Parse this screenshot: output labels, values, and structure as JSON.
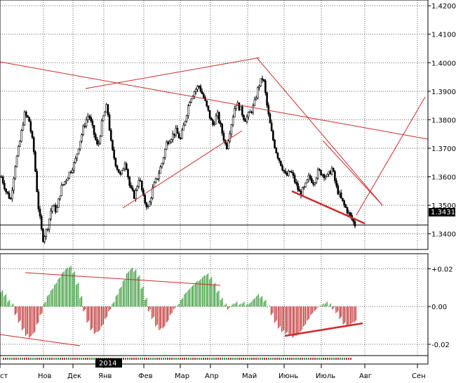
{
  "colors": {
    "background": "#ffffff",
    "grid": "#000000",
    "bull_candle": "#ffffff",
    "bear_candle": "#000000",
    "trendline": "#cc2b2b",
    "histogram_up": "#3a9a3a",
    "histogram_down": "#c03030"
  },
  "price_panel": {
    "current_price_label": "1.3431",
    "yticks": [
      "1.3400",
      "1.3500",
      "1.3600",
      "1.3700",
      "1.3800",
      "1.3900",
      "1.4000",
      "1.4100",
      "1.4200"
    ]
  },
  "osc_panel": {
    "yticks": [
      "+0.02",
      "0.00",
      "-0.02"
    ]
  },
  "time_axis": {
    "months": [
      "ст",
      "Нов",
      "Дек",
      "Янв",
      "Фев",
      "Мар",
      "Апр",
      "Май",
      "Июнь",
      "Июль",
      "Авг",
      "Сен"
    ],
    "year_badge": "2014"
  },
  "chart_data": [
    {
      "type": "candlestick",
      "title": "",
      "xlabel": "",
      "ylabel": "",
      "ylim": [
        1.3345,
        1.422
      ],
      "grid": true,
      "current_price": 1.3431,
      "series": [
        {
          "month": "Окт",
          "close": [
            1.36,
            1.355,
            1.352,
            1.364,
            1.372,
            1.382,
            1.38,
            1.37
          ]
        },
        {
          "month": "Нов",
          "close": [
            1.35,
            1.338,
            1.342,
            1.35,
            1.348,
            1.356,
            1.359,
            1.362
          ]
        },
        {
          "month": "Дек",
          "close": [
            1.365,
            1.372,
            1.378,
            1.382,
            1.376,
            1.37,
            1.38,
            1.385
          ]
        },
        {
          "month": "Янв",
          "close": [
            1.37,
            1.364,
            1.36,
            1.366,
            1.356,
            1.353,
            1.36,
            1.352
          ]
        },
        {
          "month": "Фев",
          "close": [
            1.349,
            1.356,
            1.36,
            1.365,
            1.372,
            1.374,
            1.376,
            1.373
          ]
        },
        {
          "month": "Мар",
          "close": [
            1.38,
            1.387,
            1.39,
            1.392,
            1.388,
            1.383,
            1.378,
            1.382
          ]
        },
        {
          "month": "Апр",
          "close": [
            1.376,
            1.37,
            1.378,
            1.386,
            1.384,
            1.38,
            1.382,
            1.385
          ]
        },
        {
          "month": "Май",
          "close": [
            1.392,
            1.395,
            1.383,
            1.374,
            1.368,
            1.364,
            1.36,
            1.362
          ]
        },
        {
          "month": "Июнь",
          "close": [
            1.358,
            1.354,
            1.356,
            1.36,
            1.358,
            1.362,
            1.361,
            1.36
          ]
        },
        {
          "month": "Июль",
          "close": [
            1.363,
            1.356,
            1.352,
            1.349,
            1.346,
            1.3431
          ]
        }
      ],
      "annotations": [
        "trendline",
        "trendline",
        "trendline",
        "trendline",
        "trendline",
        "trendline",
        "trendline"
      ]
    },
    {
      "type": "histogram",
      "title": "",
      "ylim": [
        -0.026,
        0.028
      ],
      "grid": true,
      "values": [
        0.008,
        0.006,
        0.003,
        0.001,
        -0.004,
        -0.008,
        -0.012,
        -0.015,
        -0.016,
        -0.014,
        -0.009,
        -0.004,
        0.002,
        0.006,
        0.009,
        0.012,
        0.015,
        0.018,
        0.02,
        0.021,
        0.018,
        0.012,
        0.005,
        -0.002,
        -0.008,
        -0.012,
        -0.014,
        -0.013,
        -0.01,
        -0.006,
        -0.002,
        0.002,
        0.006,
        0.01,
        0.014,
        0.018,
        0.02,
        0.019,
        0.016,
        0.01,
        0.004,
        -0.002,
        -0.006,
        -0.01,
        -0.012,
        -0.011,
        -0.008,
        -0.004,
        -0.001,
        0.001,
        0.004,
        0.007,
        0.009,
        0.011,
        0.013,
        0.014,
        0.016,
        0.017,
        0.015,
        0.012,
        0.008,
        0.004,
        0.001,
        -0.001,
        0.001,
        0.002,
        0.001,
        0.002,
        0.001,
        0.002,
        0.004,
        0.006,
        0.005,
        0.003,
        0.0,
        -0.004,
        -0.008,
        -0.011,
        -0.013,
        -0.014,
        -0.015,
        -0.016,
        -0.015,
        -0.013,
        -0.01,
        -0.007,
        -0.004,
        -0.002,
        0.0,
        0.001,
        0.002,
        0.001,
        -0.001,
        -0.003,
        -0.006,
        -0.009,
        -0.01,
        -0.009,
        -0.008
      ]
    }
  ]
}
